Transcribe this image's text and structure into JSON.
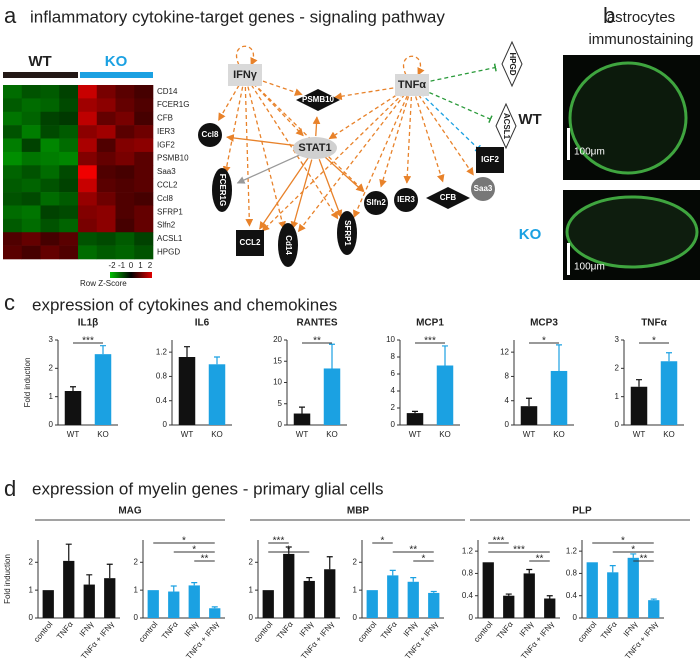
{
  "panels": {
    "a": {
      "label": "a",
      "title": "inflammatory cytokine-target genes - signaling pathway",
      "heatmap": {
        "groups": [
          "WT",
          "KO"
        ],
        "genes": [
          "CD14",
          "FCER1G",
          "CFB",
          "IER3",
          "IGF2",
          "PSMB10",
          "Saa3",
          "CCL2",
          "Ccl8",
          "SFRP1",
          "Slfn2",
          "ACSL1",
          "HPGD"
        ],
        "values": [
          [
            -0.8,
            -0.5,
            -0.6,
            -0.3,
            1.6,
            0.8,
            0.5,
            0.3
          ],
          [
            -0.6,
            -0.8,
            -0.7,
            -0.4,
            1.2,
            1.0,
            0.6,
            0.4
          ],
          [
            -0.9,
            -0.7,
            -0.3,
            -0.2,
            1.5,
            0.6,
            0.8,
            0.3
          ],
          [
            -0.5,
            -1.0,
            -0.4,
            -0.6,
            1.0,
            1.2,
            0.5,
            0.7
          ],
          [
            -1.0,
            -0.3,
            -1.1,
            -0.8,
            1.3,
            0.4,
            0.9,
            1.0
          ],
          [
            -1.2,
            -0.9,
            -1.0,
            -1.1,
            0.9,
            0.6,
            0.8,
            0.5
          ],
          [
            -0.7,
            -0.5,
            -0.8,
            -0.4,
            2.0,
            0.4,
            0.3,
            0.5
          ],
          [
            -0.6,
            -0.7,
            -0.5,
            -0.3,
            1.6,
            0.5,
            0.4,
            0.5
          ],
          [
            -0.5,
            -0.4,
            -0.8,
            -0.6,
            1.1,
            0.7,
            0.4,
            0.3
          ],
          [
            -0.8,
            -0.9,
            -0.3,
            -0.4,
            0.9,
            1.0,
            0.4,
            0.6
          ],
          [
            -0.6,
            -0.8,
            -0.5,
            -0.7,
            0.8,
            1.0,
            0.3,
            0.6
          ],
          [
            0.4,
            0.6,
            0.3,
            0.5,
            -0.5,
            -0.4,
            -0.6,
            -0.3
          ],
          [
            0.5,
            0.3,
            0.6,
            0.4,
            -0.8,
            -0.6,
            -0.7,
            -0.5
          ]
        ],
        "legend_title": "Row Z-Score",
        "legend_ticks": [
          -2,
          -1,
          0,
          1,
          2
        ]
      },
      "network": {
        "nodes": [
          "IFNγ",
          "TNFα",
          "PSMB10",
          "STAT1",
          "Ccl8",
          "FCER1G",
          "CCL2",
          "Cd14",
          "SFRP1",
          "Slfn2",
          "IER3",
          "CFB",
          "Saa3",
          "IGF2",
          "HPGD",
          "ACSL1"
        ]
      }
    },
    "b": {
      "label": "b",
      "title": [
        "astrocytes",
        "immunostaining"
      ],
      "rows": [
        "WT",
        "KO"
      ],
      "scale_bars": [
        "100μm",
        "100μm"
      ]
    },
    "c": {
      "label": "c",
      "title": "expression of cytokines and chemokines"
    },
    "d": {
      "label": "d",
      "title": "expression of myelin genes - primary glial cells",
      "groups": [
        "MAG",
        "MBP",
        "PLP"
      ]
    }
  },
  "chart_data": [
    {
      "type": "bar",
      "title": "IL1β",
      "ylabel": "Fold induction",
      "categories": [
        "WT",
        "KO"
      ],
      "values": [
        1.2,
        2.5
      ],
      "errors": [
        0.15,
        0.3
      ],
      "colors": [
        "#111111",
        "#1ba1e2"
      ],
      "ylim": [
        0,
        3
      ],
      "yticks": [
        0,
        1,
        2,
        3
      ],
      "annotations": [
        "***"
      ]
    },
    {
      "type": "bar",
      "title": "IL6",
      "categories": [
        "WT",
        "KO"
      ],
      "values": [
        1.12,
        1.0
      ],
      "errors": [
        0.17,
        0.12
      ],
      "colors": [
        "#111111",
        "#1ba1e2"
      ],
      "ylim": [
        0,
        1.4
      ],
      "yticks": [
        0,
        0.4,
        0.8,
        1.2
      ],
      "annotations": []
    },
    {
      "type": "bar",
      "title": "RANTES",
      "categories": [
        "WT",
        "KO"
      ],
      "values": [
        2.7,
        13.3
      ],
      "errors": [
        1.5,
        5.7
      ],
      "colors": [
        "#111111",
        "#1ba1e2"
      ],
      "ylim": [
        0,
        20
      ],
      "yticks": [
        0,
        5,
        10,
        15,
        20
      ],
      "annotations": [
        "**"
      ]
    },
    {
      "type": "bar",
      "title": "MCP1",
      "categories": [
        "WT",
        "KO"
      ],
      "values": [
        1.4,
        7.0
      ],
      "errors": [
        0.2,
        2.3
      ],
      "colors": [
        "#111111",
        "#1ba1e2"
      ],
      "ylim": [
        0,
        10
      ],
      "yticks": [
        0,
        2,
        4,
        6,
        8,
        10
      ],
      "annotations": [
        "***"
      ]
    },
    {
      "type": "bar",
      "title": "MCP3",
      "categories": [
        "WT",
        "KO"
      ],
      "values": [
        3.1,
        8.9
      ],
      "errors": [
        1.3,
        4.3
      ],
      "colors": [
        "#111111",
        "#1ba1e2"
      ],
      "ylim": [
        0,
        14
      ],
      "yticks": [
        0,
        4,
        8,
        12
      ],
      "annotations": [
        "*"
      ]
    },
    {
      "type": "bar",
      "title": "TNFα",
      "categories": [
        "WT",
        "KO"
      ],
      "values": [
        1.35,
        2.25
      ],
      "errors": [
        0.25,
        0.3
      ],
      "colors": [
        "#111111",
        "#1ba1e2"
      ],
      "ylim": [
        0,
        3
      ],
      "yticks": [
        0,
        1,
        2,
        3
      ],
      "annotations": [
        "*"
      ]
    },
    {
      "type": "bar",
      "ylabel": "Fold induction",
      "categories": [
        "control",
        "TNFα",
        "IFNγ",
        "TNFα + IFNγ"
      ],
      "values": [
        1.0,
        2.05,
        1.2,
        1.43
      ],
      "errors": [
        0,
        0.6,
        0.35,
        0.5
      ],
      "color": "#111111",
      "ylim": [
        0,
        2.8
      ],
      "yticks": [
        0,
        1,
        2
      ],
      "annotations": []
    },
    {
      "type": "bar",
      "categories": [
        "control",
        "TNFα",
        "IFNγ",
        "TNFα + IFNγ"
      ],
      "values": [
        1.0,
        0.95,
        1.17,
        0.35
      ],
      "errors": [
        0,
        0.2,
        0.1,
        0.05
      ],
      "color": "#1ba1e2",
      "ylim": [
        0,
        2.8
      ],
      "yticks": [
        0,
        1,
        2
      ],
      "annotations": [
        "*",
        "*",
        "**"
      ]
    },
    {
      "type": "bar",
      "categories": [
        "control",
        "TNFα",
        "IFNγ",
        "TNFα + IFNγ"
      ],
      "values": [
        1.0,
        2.3,
        1.33,
        1.75
      ],
      "errors": [
        0,
        0.25,
        0.12,
        0.45
      ],
      "color": "#111111",
      "ylim": [
        0,
        2.8
      ],
      "yticks": [
        0,
        1,
        2
      ],
      "annotations": [
        "***",
        "*"
      ]
    },
    {
      "type": "bar",
      "categories": [
        "control",
        "TNFα",
        "IFNγ",
        "TNFα + IFNγ"
      ],
      "values": [
        1.0,
        1.53,
        1.3,
        0.9
      ],
      "errors": [
        0,
        0.18,
        0.15,
        0.05
      ],
      "color": "#1ba1e2",
      "ylim": [
        0,
        2.8
      ],
      "yticks": [
        0,
        1,
        2
      ],
      "annotations": [
        "*",
        "**",
        "*"
      ]
    },
    {
      "type": "bar",
      "categories": [
        "control",
        "TNFα",
        "IFNγ",
        "TNFα + IFNγ"
      ],
      "values": [
        1.0,
        0.4,
        0.8,
        0.35
      ],
      "errors": [
        0,
        0.03,
        0.07,
        0.05
      ],
      "color": "#111111",
      "ylim": [
        0,
        1.4
      ],
      "yticks": [
        0,
        0.4,
        0.8,
        1.2
      ],
      "annotations": [
        "***",
        "***",
        "**"
      ]
    },
    {
      "type": "bar",
      "categories": [
        "control",
        "TNFα",
        "IFNγ",
        "TNFα + IFNγ"
      ],
      "values": [
        1.0,
        0.82,
        1.08,
        0.32
      ],
      "errors": [
        0,
        0.12,
        0.07,
        0.02
      ],
      "color": "#1ba1e2",
      "ylim": [
        0,
        1.4
      ],
      "yticks": [
        0,
        0.4,
        0.8,
        1.2
      ],
      "annotations": [
        "*",
        "*",
        "**"
      ]
    }
  ]
}
